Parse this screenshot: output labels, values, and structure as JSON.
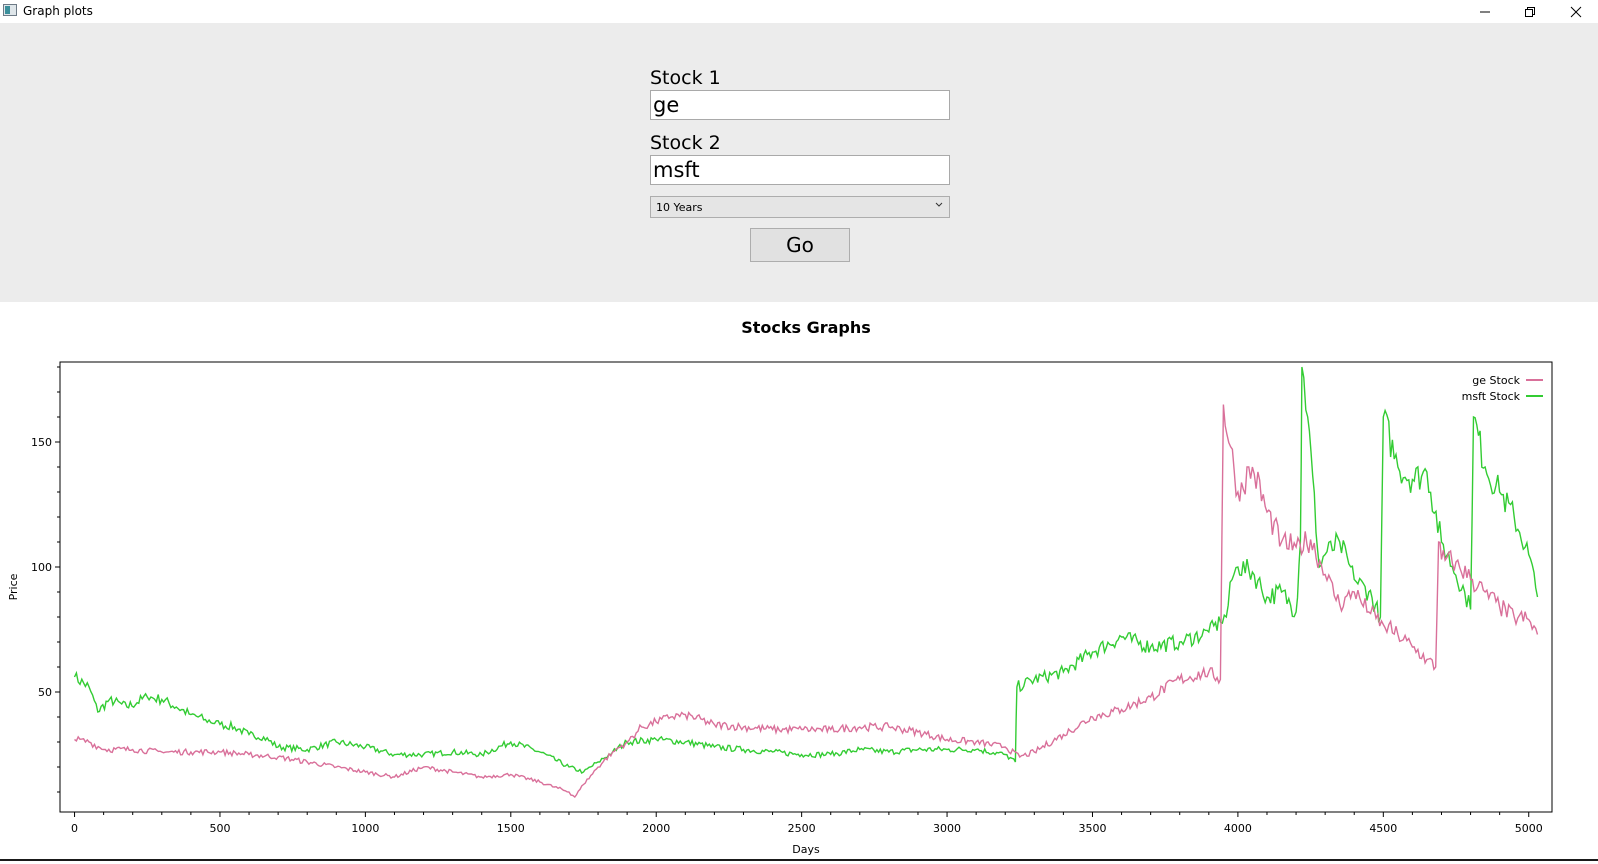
{
  "window": {
    "title": "Graph plots",
    "icons": [
      "app-icon",
      "minimize-icon",
      "restore-icon",
      "close-icon"
    ]
  },
  "form": {
    "stock1_label": "Stock 1",
    "stock1_value": "ge",
    "stock2_label": "Stock 2",
    "stock2_value": "msft",
    "period_selected": "10 Years",
    "go_label": "Go"
  },
  "chart_data": {
    "type": "line",
    "title": "Stocks Graphs",
    "xlabel": "Days",
    "ylabel": "Price",
    "xlim": [
      -50,
      5080
    ],
    "ylim": [
      2,
      182
    ],
    "xticks": [
      0,
      500,
      1000,
      1500,
      2000,
      2500,
      3000,
      3500,
      4000,
      4500,
      5000
    ],
    "yticks": [
      50,
      100,
      150
    ],
    "grid": false,
    "legend_position": "top-right",
    "series": [
      {
        "name": "ge Stock",
        "color": "#d9709a",
        "x": [
          0,
          50,
          100,
          200,
          300,
          400,
          500,
          600,
          700,
          800,
          900,
          1000,
          1100,
          1200,
          1300,
          1400,
          1500,
          1600,
          1650,
          1700,
          1720,
          1750,
          1800,
          1850,
          1900,
          1950,
          2000,
          2050,
          2100,
          2200,
          2300,
          2400,
          2500,
          2600,
          2700,
          2800,
          2900,
          3000,
          3100,
          3200,
          3250,
          3300,
          3400,
          3500,
          3600,
          3700,
          3800,
          3900,
          3940,
          3950,
          4000,
          4050,
          4100,
          4150,
          4200,
          4250,
          4300,
          4350,
          4400,
          4450,
          4500,
          4550,
          4600,
          4650,
          4680,
          4690,
          4700,
          4750,
          4800,
          4850,
          4900,
          4950,
          5000,
          5030
        ],
        "values": [
          31,
          30,
          27,
          27,
          26,
          26,
          26,
          25,
          24,
          22,
          20,
          18,
          16,
          20,
          18,
          16,
          17,
          14,
          12,
          10,
          8,
          13,
          20,
          26,
          30,
          36,
          38,
          40,
          41,
          37,
          36,
          35,
          35,
          35,
          36,
          36,
          34,
          31,
          30,
          28,
          24,
          26,
          33,
          40,
          43,
          48,
          55,
          58,
          55,
          165,
          130,
          140,
          122,
          110,
          108,
          111,
          97,
          85,
          90,
          82,
          77,
          73,
          68,
          63,
          60,
          110,
          103,
          102,
          95,
          90,
          84,
          80,
          79,
          73
        ]
      },
      {
        "name": "msft Stock",
        "color": "#33cc33",
        "x": [
          0,
          50,
          80,
          120,
          180,
          250,
          300,
          350,
          400,
          450,
          500,
          550,
          600,
          650,
          700,
          800,
          900,
          1000,
          1100,
          1200,
          1300,
          1400,
          1500,
          1600,
          1700,
          1750,
          1800,
          1850,
          1900,
          2000,
          2100,
          2200,
          2300,
          2400,
          2500,
          2600,
          2700,
          2800,
          2900,
          3000,
          3100,
          3200,
          3235,
          3240,
          3300,
          3400,
          3500,
          3600,
          3700,
          3800,
          3900,
          3940,
          3960,
          3980,
          4000,
          4050,
          4100,
          4150,
          4200,
          4215,
          4220,
          4240,
          4280,
          4300,
          4350,
          4400,
          4450,
          4490,
          4500,
          4550,
          4600,
          4650,
          4700,
          4780,
          4800,
          4810,
          4850,
          4900,
          4950,
          5000,
          5030
        ],
        "values": [
          56,
          52,
          42,
          47,
          44,
          48,
          47,
          44,
          41,
          39,
          37,
          36,
          33,
          32,
          28,
          27,
          30,
          28,
          25,
          25,
          26,
          25,
          30,
          26,
          20,
          18,
          22,
          26,
          30,
          31,
          30,
          28,
          27,
          26,
          25,
          25,
          27,
          26,
          27,
          27,
          27,
          25,
          22,
          52,
          55,
          58,
          66,
          72,
          68,
          70,
          74,
          78,
          80,
          95,
          100,
          98,
          88,
          90,
          82,
          110,
          180,
          160,
          100,
          105,
          110,
          95,
          90,
          80,
          160,
          140,
          135,
          138,
          110,
          90,
          83,
          160,
          140,
          130,
          120,
          105,
          88
        ]
      }
    ]
  }
}
